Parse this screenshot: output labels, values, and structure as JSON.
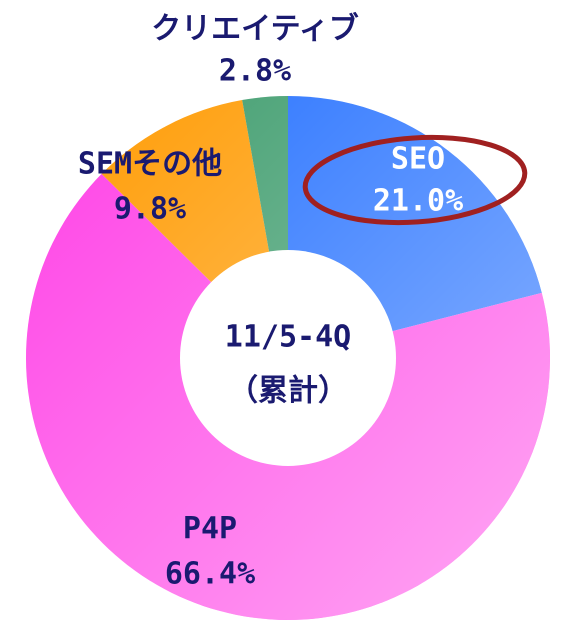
{
  "chart_data": {
    "type": "donut",
    "center_text": [
      "11/5-4Q",
      "（累計）"
    ],
    "categories": [
      "SEO",
      "P4P",
      "SEMその他",
      "クリエイティブ"
    ],
    "values": [
      21.0,
      66.4,
      9.8,
      2.8
    ],
    "value_labels": [
      "21.0%",
      "66.4%",
      "9.8%",
      "2.8%"
    ],
    "colors": [
      "#1e6cff",
      "#ff3fe6",
      "#ff9a00",
      "#3a9a6a"
    ]
  }
}
